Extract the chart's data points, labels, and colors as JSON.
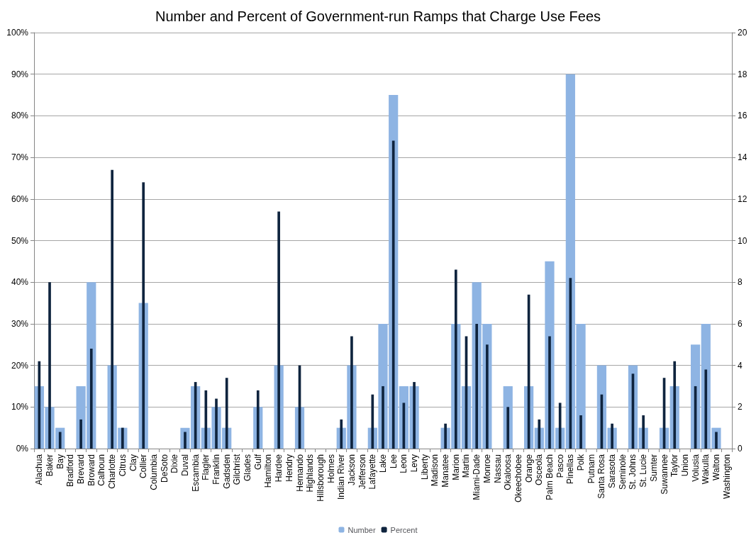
{
  "chart_data": {
    "type": "bar",
    "title": "Number and Percent of Government-run Ramps that Charge Use Fees",
    "categories": [
      "Alachua",
      "Baker",
      "Bay",
      "Bradford",
      "Brevard",
      "Broward",
      "Calhoun",
      "Charlotte",
      "Citrus",
      "Clay",
      "Collier",
      "Columbia",
      "DeSoto",
      "Dixie",
      "Duval",
      "Escambia",
      "Flagler",
      "Franklin",
      "Gadsden",
      "Gilchrist",
      "Glades",
      "Gulf",
      "Hamilton",
      "Hardee",
      "Hendry",
      "Hernando",
      "Highlands",
      "Hillsborough",
      "Holmes",
      "Indian River",
      "Jackson",
      "Jefferson",
      "Lafayette",
      "Lake",
      "Lee",
      "Leon",
      "Levy",
      "Liberty",
      "Madison",
      "Manatee",
      "Marion",
      "Martin",
      "Miami-Dade",
      "Monroe",
      "Nassau",
      "Okaloosa",
      "Okeechobee",
      "Orange",
      "Osceola",
      "Palm Beach",
      "Pasco",
      "Pinellas",
      "Polk",
      "Putnam",
      "Santa Rosa",
      "Sarasota",
      "Seminole",
      "St. Johns",
      "St. Lucie",
      "Sumter",
      "Suwannee",
      "Taylor",
      "Union",
      "Volusia",
      "Wakulla",
      "Walton",
      "Washington"
    ],
    "series": [
      {
        "name": "Number",
        "color": "#8eb4e3",
        "axis": "y2",
        "values": [
          3,
          2,
          1,
          0,
          3,
          8,
          0,
          4,
          1,
          0,
          7,
          0,
          0,
          0,
          1,
          3,
          1,
          2,
          1,
          0,
          0,
          2,
          0,
          4,
          0,
          2,
          0,
          0,
          0,
          1,
          4,
          0,
          1,
          6,
          17,
          3,
          3,
          0,
          0,
          1,
          6,
          3,
          8,
          6,
          0,
          3,
          0,
          3,
          1,
          9,
          1,
          18,
          6,
          0,
          4,
          1,
          0,
          4,
          1,
          0,
          1,
          3,
          0,
          5,
          6,
          1,
          0
        ]
      },
      {
        "name": "Percent",
        "color": "#0f243e",
        "values": [
          21,
          40,
          4,
          0,
          7,
          24,
          0,
          67,
          5,
          0,
          64,
          0,
          0,
          0,
          4,
          16,
          14,
          12,
          17,
          0,
          0,
          14,
          0,
          57,
          0,
          20,
          0,
          0,
          0,
          7,
          27,
          0,
          13,
          15,
          74,
          11,
          16,
          0,
          0,
          6,
          43,
          27,
          30,
          25,
          0,
          10,
          0,
          37,
          7,
          27,
          11,
          41,
          8,
          0,
          13,
          6,
          0,
          18,
          8,
          0,
          17,
          21,
          0,
          15,
          19,
          4,
          0
        ]
      }
    ],
    "ylim": [
      0,
      100
    ],
    "yticks": [
      {
        "value": 0,
        "label": "0%"
      },
      {
        "value": 10,
        "label": "10%"
      },
      {
        "value": 20,
        "label": "20%"
      },
      {
        "value": 30,
        "label": "30%"
      },
      {
        "value": 40,
        "label": "40%"
      },
      {
        "value": 50,
        "label": "50%"
      },
      {
        "value": 60,
        "label": "60%"
      },
      {
        "value": 70,
        "label": "70%"
      },
      {
        "value": 80,
        "label": "80%"
      },
      {
        "value": 90,
        "label": "90%"
      },
      {
        "value": 100,
        "label": "100%"
      }
    ],
    "y2lim": [
      0,
      20
    ],
    "y2ticks": [
      0,
      2,
      4,
      6,
      8,
      10,
      12,
      14,
      16,
      18,
      20
    ],
    "grid": "y",
    "legend": "bottom"
  }
}
